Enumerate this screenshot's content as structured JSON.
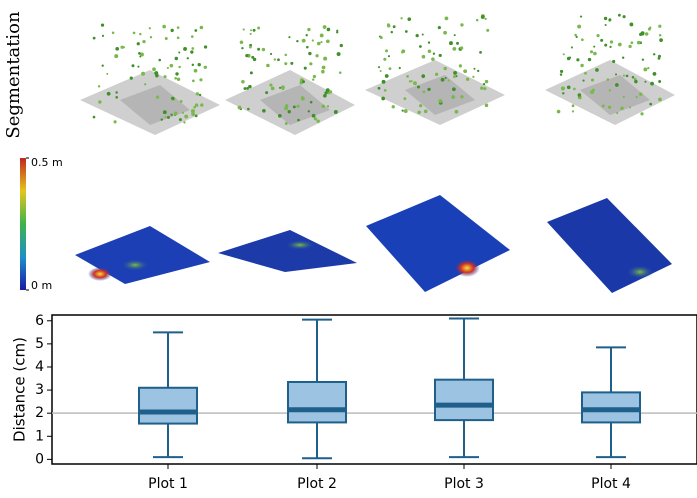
{
  "row_label": "Segmentation",
  "colorbar": {
    "range": [
      0,
      0.5
    ],
    "ticks": [
      {
        "value": 0.5,
        "label": "0.5 m"
      },
      {
        "value": 0,
        "label": "0 m"
      }
    ]
  },
  "chart_data": {
    "type": "box",
    "ylabel": "Distance (cm)",
    "categories": [
      "Plot 1",
      "Plot 2",
      "Plot 3",
      "Plot 4"
    ],
    "boxes": [
      {
        "whislo": 0.1,
        "q1": 1.55,
        "med": 2.05,
        "q3": 3.1,
        "whishi": 5.5
      },
      {
        "whislo": 0.05,
        "q1": 1.6,
        "med": 2.15,
        "q3": 3.35,
        "whishi": 6.05
      },
      {
        "whislo": 0.1,
        "q1": 1.7,
        "med": 2.35,
        "q3": 3.45,
        "whishi": 6.1
      },
      {
        "whislo": 0.1,
        "q1": 1.6,
        "med": 2.15,
        "q3": 2.9,
        "whishi": 4.85
      }
    ],
    "color": "#9dc3e2",
    "edge_color": "#1f5f8b",
    "reference_line": 2,
    "ylim": [
      -0.2,
      6.25
    ],
    "yticks": [
      0,
      1,
      2,
      3,
      4,
      5,
      6
    ]
  }
}
